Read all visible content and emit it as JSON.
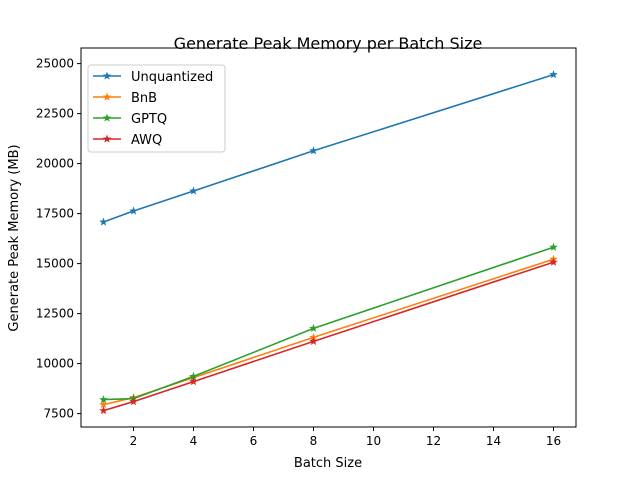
{
  "chart_data": {
    "type": "line",
    "title": "Generate Peak Memory per Batch Size",
    "xlabel": "Batch Size",
    "ylabel": "Generate Peak Memory (MB)",
    "x": [
      1,
      2,
      4,
      8,
      16
    ],
    "xlim": [
      0.25,
      16.75
    ],
    "ylim": [
      6830,
      25780
    ],
    "xticks": [
      2,
      4,
      6,
      8,
      10,
      12,
      14,
      16
    ],
    "yticks": [
      7500,
      10000,
      12500,
      15000,
      17500,
      20000,
      22500,
      25000
    ],
    "grid": false,
    "legend_position": "top-left",
    "marker": "star",
    "series": [
      {
        "name": "Unquantized",
        "color": "#1f77b4",
        "values": [
          17080,
          17630,
          18630,
          20640,
          24450
        ]
      },
      {
        "name": "BnB",
        "color": "#ff7f0e",
        "values": [
          7950,
          8300,
          9300,
          11310,
          15220
        ]
      },
      {
        "name": "GPTQ",
        "color": "#2ca02c",
        "values": [
          8200,
          8250,
          9360,
          11760,
          15820
        ]
      },
      {
        "name": "AWQ",
        "color": "#d62728",
        "values": [
          7650,
          8100,
          9100,
          11110,
          15070
        ]
      }
    ]
  }
}
